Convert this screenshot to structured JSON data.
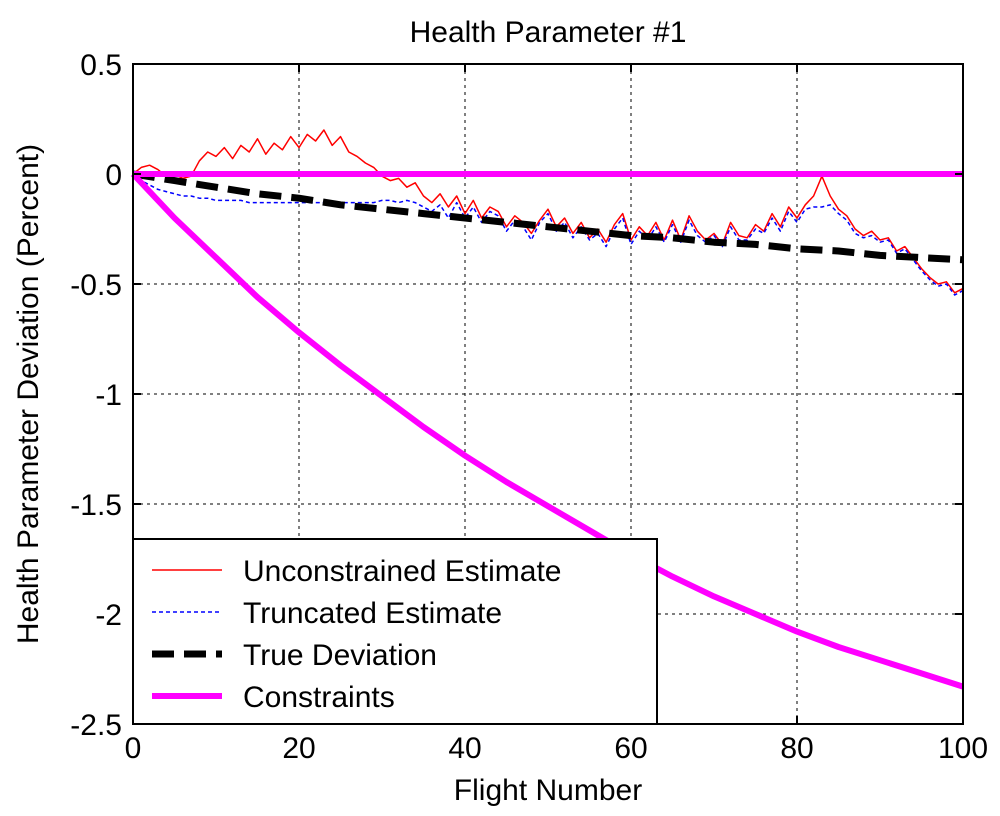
{
  "chart_data": {
    "type": "line",
    "title": "Health Parameter #1",
    "xlabel": "Flight Number",
    "ylabel": "Health Parameter Deviation  (Percent)",
    "xlim": [
      0,
      100
    ],
    "ylim": [
      -2.5,
      0.5
    ],
    "xticks": [
      0,
      20,
      40,
      60,
      80,
      100
    ],
    "yticks": [
      -2.5,
      -2,
      -1.5,
      -1,
      -0.5,
      0,
      0.5
    ],
    "xtick_labels": [
      "0",
      "20",
      "40",
      "60",
      "80",
      "100"
    ],
    "ytick_labels": [
      "-2.5",
      "-2",
      "-1.5",
      "-1",
      "-0.5",
      "0",
      "0.5"
    ],
    "grid": true,
    "legend_position": "bottom-left",
    "series": [
      {
        "name": "Unconstrained Estimate",
        "color": "#ff0000",
        "style": "thin-solid",
        "x": [
          0,
          1,
          2,
          3,
          4,
          5,
          6,
          7,
          8,
          9,
          10,
          11,
          12,
          13,
          14,
          15,
          16,
          17,
          18,
          19,
          20,
          21,
          22,
          23,
          24,
          25,
          26,
          27,
          28,
          29,
          30,
          31,
          32,
          33,
          34,
          35,
          36,
          37,
          38,
          39,
          40,
          41,
          42,
          43,
          44,
          45,
          46,
          47,
          48,
          49,
          50,
          51,
          52,
          53,
          54,
          55,
          56,
          57,
          58,
          59,
          60,
          61,
          62,
          63,
          64,
          65,
          66,
          67,
          68,
          69,
          70,
          71,
          72,
          73,
          74,
          75,
          76,
          77,
          78,
          79,
          80,
          81,
          82,
          83,
          84,
          85,
          86,
          87,
          88,
          89,
          90,
          91,
          92,
          93,
          94,
          95,
          96,
          97,
          98,
          99,
          100
        ],
        "y": [
          0,
          0.03,
          0.04,
          0.02,
          -0.01,
          0.0,
          -0.02,
          -0.01,
          0.06,
          0.1,
          0.08,
          0.12,
          0.07,
          0.13,
          0.1,
          0.16,
          0.09,
          0.14,
          0.11,
          0.17,
          0.12,
          0.18,
          0.15,
          0.2,
          0.13,
          0.17,
          0.1,
          0.08,
          0.05,
          0.03,
          -0.01,
          -0.03,
          -0.02,
          -0.06,
          -0.04,
          -0.1,
          -0.13,
          -0.09,
          -0.15,
          -0.1,
          -0.18,
          -0.12,
          -0.2,
          -0.15,
          -0.17,
          -0.24,
          -0.19,
          -0.22,
          -0.27,
          -0.21,
          -0.16,
          -0.24,
          -0.2,
          -0.27,
          -0.22,
          -0.29,
          -0.25,
          -0.31,
          -0.23,
          -0.18,
          -0.3,
          -0.24,
          -0.28,
          -0.22,
          -0.3,
          -0.21,
          -0.3,
          -0.19,
          -0.26,
          -0.3,
          -0.27,
          -0.32,
          -0.22,
          -0.28,
          -0.29,
          -0.23,
          -0.26,
          -0.18,
          -0.24,
          -0.15,
          -0.2,
          -0.14,
          -0.1,
          -0.01,
          -0.1,
          -0.16,
          -0.19,
          -0.25,
          -0.28,
          -0.26,
          -0.3,
          -0.29,
          -0.35,
          -0.33,
          -0.38,
          -0.43,
          -0.47,
          -0.5,
          -0.49,
          -0.54,
          -0.52
        ]
      },
      {
        "name": "Truncated Estimate",
        "color": "#0000ff",
        "style": "thin-dotted",
        "x": [
          0,
          1,
          2,
          3,
          4,
          5,
          6,
          7,
          8,
          9,
          10,
          11,
          12,
          13,
          14,
          15,
          16,
          17,
          18,
          19,
          20,
          21,
          22,
          23,
          24,
          25,
          26,
          27,
          28,
          29,
          30,
          31,
          32,
          33,
          34,
          35,
          36,
          37,
          38,
          39,
          40,
          41,
          42,
          43,
          44,
          45,
          46,
          47,
          48,
          49,
          50,
          51,
          52,
          53,
          54,
          55,
          56,
          57,
          58,
          59,
          60,
          61,
          62,
          63,
          64,
          65,
          66,
          67,
          68,
          69,
          70,
          71,
          72,
          73,
          74,
          75,
          76,
          77,
          78,
          79,
          80,
          81,
          82,
          83,
          84,
          85,
          86,
          87,
          88,
          89,
          90,
          91,
          92,
          93,
          94,
          95,
          96,
          97,
          98,
          99,
          100
        ],
        "y": [
          0,
          -0.03,
          -0.05,
          -0.07,
          -0.08,
          -0.09,
          -0.1,
          -0.1,
          -0.11,
          -0.11,
          -0.12,
          -0.12,
          -0.12,
          -0.12,
          -0.13,
          -0.13,
          -0.13,
          -0.13,
          -0.13,
          -0.13,
          -0.13,
          -0.13,
          -0.13,
          -0.13,
          -0.13,
          -0.13,
          -0.13,
          -0.13,
          -0.13,
          -0.13,
          -0.12,
          -0.12,
          -0.13,
          -0.12,
          -0.13,
          -0.15,
          -0.17,
          -0.14,
          -0.2,
          -0.13,
          -0.2,
          -0.15,
          -0.22,
          -0.17,
          -0.19,
          -0.26,
          -0.21,
          -0.24,
          -0.3,
          -0.22,
          -0.18,
          -0.26,
          -0.22,
          -0.29,
          -0.24,
          -0.3,
          -0.27,
          -0.33,
          -0.25,
          -0.2,
          -0.32,
          -0.26,
          -0.3,
          -0.24,
          -0.31,
          -0.23,
          -0.31,
          -0.21,
          -0.28,
          -0.31,
          -0.28,
          -0.33,
          -0.24,
          -0.3,
          -0.3,
          -0.25,
          -0.27,
          -0.2,
          -0.26,
          -0.17,
          -0.22,
          -0.16,
          -0.15,
          -0.15,
          -0.14,
          -0.18,
          -0.21,
          -0.27,
          -0.29,
          -0.28,
          -0.31,
          -0.3,
          -0.36,
          -0.34,
          -0.39,
          -0.44,
          -0.48,
          -0.51,
          -0.5,
          -0.55,
          -0.53
        ]
      },
      {
        "name": "True Deviation",
        "color": "#000000",
        "style": "thick-dashed",
        "x": [
          0,
          5,
          10,
          15,
          20,
          25,
          30,
          35,
          40,
          45,
          50,
          55,
          60,
          65,
          70,
          75,
          80,
          85,
          90,
          95,
          100
        ],
        "y": [
          0,
          -0.03,
          -0.06,
          -0.09,
          -0.11,
          -0.14,
          -0.16,
          -0.18,
          -0.2,
          -0.22,
          -0.24,
          -0.26,
          -0.28,
          -0.29,
          -0.31,
          -0.32,
          -0.34,
          -0.35,
          -0.37,
          -0.38,
          -0.39
        ]
      },
      {
        "name": "Constraints",
        "color": "#ff00ff",
        "style": "thick-solid",
        "x": [
          0,
          2,
          5,
          10,
          15,
          20,
          25,
          30,
          35,
          40,
          45,
          50,
          55,
          60,
          65,
          70,
          75,
          80,
          85,
          90,
          95,
          100
        ],
        "y": [
          0,
          -0.08,
          -0.2,
          -0.38,
          -0.56,
          -0.72,
          -0.87,
          -1.01,
          -1.15,
          -1.28,
          -1.4,
          -1.51,
          -1.62,
          -1.73,
          -1.83,
          -1.92,
          -2.0,
          -2.08,
          -2.15,
          -2.21,
          -2.27,
          -2.33
        ]
      },
      {
        "name": "",
        "color": "#ff00ff",
        "style": "thick-solid",
        "x": [
          0,
          100
        ],
        "y": [
          0,
          0
        ]
      }
    ],
    "legend": [
      {
        "label": "Unconstrained Estimate",
        "color": "#ff0000",
        "style": "thin-solid"
      },
      {
        "label": "Truncated Estimate",
        "color": "#0000ff",
        "style": "thin-dotted"
      },
      {
        "label": "True Deviation",
        "color": "#000000",
        "style": "thick-dashed"
      },
      {
        "label": "Constraints",
        "color": "#ff00ff",
        "style": "thick-solid"
      }
    ]
  }
}
